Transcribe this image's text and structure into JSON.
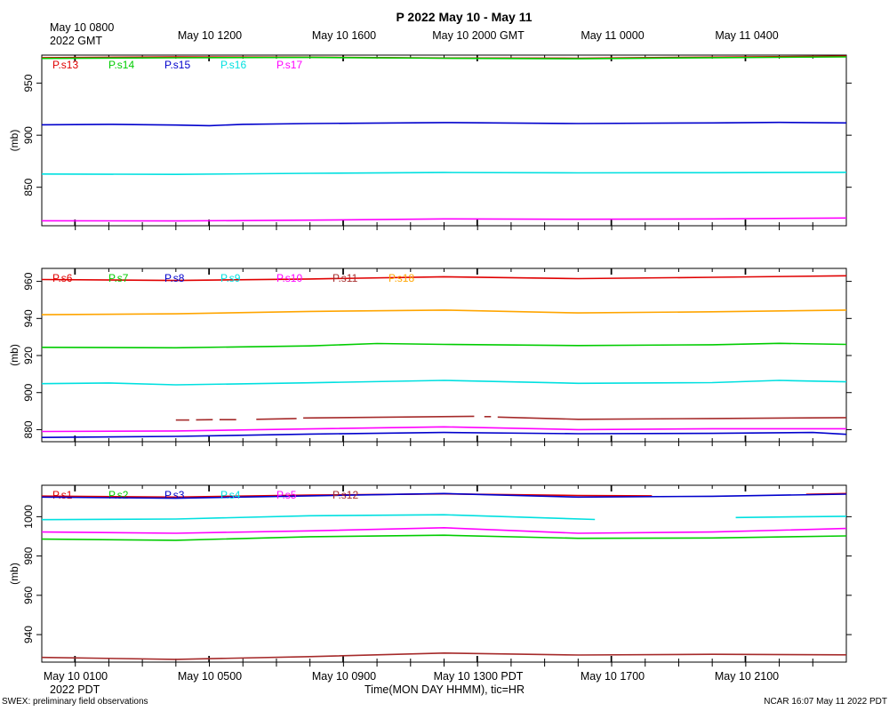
{
  "title": "P 2022 May 10 - May 11",
  "top_axis": {
    "first_label_line1": "May 10 0800",
    "first_label_line2": "2022 GMT",
    "labels": [
      "May 10 1200",
      "May 10 1600",
      "May 10 2000 GMT",
      "May 11 0000",
      "May 11 0400"
    ]
  },
  "bottom_axis": {
    "labels": [
      "May 10 0100",
      "May 10 0500",
      "May 10 0900",
      "May 10 1300 PDT",
      "May 10 1700",
      "May 10 2100"
    ],
    "year_label": "2022 PDT",
    "title": "Time(MON DAY HHMM), tic=HR"
  },
  "footer": {
    "left": "SWEX: preliminary field observations",
    "right": "NCAR 16:07 May 11 2022 PDT"
  },
  "chart_data": [
    {
      "type": "line",
      "ylabel": "(mb)",
      "ylim": [
        813,
        977
      ],
      "yticks": [
        850,
        900,
        950
      ],
      "xlim": [
        0,
        24
      ],
      "series": [
        {
          "name": "P.s13",
          "color": "#e00000",
          "points": [
            [
              0,
              974.5
            ],
            [
              4,
              975.2
            ],
            [
              8,
              975.0
            ],
            [
              12,
              974.2
            ],
            [
              16,
              974.0
            ],
            [
              20,
              975.0
            ],
            [
              24,
              976.0
            ]
          ]
        },
        {
          "name": "P.s14",
          "color": "#00cc00",
          "points": [
            [
              0,
              973.8
            ],
            [
              4,
              974.4
            ],
            [
              8,
              974.8
            ],
            [
              12,
              974.0
            ],
            [
              16,
              973.5
            ],
            [
              20,
              974.5
            ],
            [
              24,
              975.3
            ]
          ]
        },
        {
          "name": "P.s15",
          "color": "#0000cc",
          "points": [
            [
              0,
              910
            ],
            [
              2,
              910.5
            ],
            [
              4,
              909.8
            ],
            [
              5,
              909.2
            ],
            [
              6,
              910.5
            ],
            [
              8,
              911.2
            ],
            [
              12,
              912.2
            ],
            [
              16,
              911.2
            ],
            [
              20,
              911.8
            ],
            [
              22,
              912.3
            ],
            [
              24,
              911.8
            ]
          ]
        },
        {
          "name": "P.s16",
          "color": "#00e0e0",
          "points": [
            [
              0,
              862.7
            ],
            [
              4,
              862.4
            ],
            [
              8,
              863.4
            ],
            [
              12,
              864.2
            ],
            [
              16,
              863.8
            ],
            [
              20,
              864.0
            ],
            [
              24,
              864.3
            ]
          ]
        },
        {
          "name": "P.s17",
          "color": "#ff00ff",
          "points": [
            [
              0,
              817.8
            ],
            [
              4,
              817.6
            ],
            [
              8,
              818.4
            ],
            [
              12,
              819.6
            ],
            [
              16,
              819.2
            ],
            [
              20,
              819.6
            ],
            [
              24,
              820.4
            ]
          ]
        }
      ]
    },
    {
      "type": "line",
      "ylabel": "(mb)",
      "ylim": [
        873.5,
        967
      ],
      "yticks": [
        880,
        900,
        920,
        940,
        960
      ],
      "xlim": [
        0,
        24
      ],
      "series": [
        {
          "name": "P.s6",
          "color": "#e00000",
          "points": [
            [
              0,
              961.0
            ],
            [
              4,
              960.5
            ],
            [
              8,
              961.3
            ],
            [
              12,
              962.5
            ],
            [
              16,
              961.5
            ],
            [
              20,
              962.2
            ],
            [
              24,
              963.0
            ]
          ]
        },
        {
          "name": "P.s7",
          "color": "#00cc00",
          "points": [
            [
              0,
              924.4
            ],
            [
              4,
              924.2
            ],
            [
              8,
              925.2
            ],
            [
              10,
              926.5
            ],
            [
              12,
              926.0
            ],
            [
              16,
              925.4
            ],
            [
              20,
              925.8
            ],
            [
              22,
              926.6
            ],
            [
              24,
              926.0
            ]
          ]
        },
        {
          "name": "P.s8",
          "color": "#0000cc",
          "points": [
            [
              0,
              875.8
            ],
            [
              4,
              876.4
            ],
            [
              8,
              877.6
            ],
            [
              12,
              878.5
            ],
            [
              16,
              877.8
            ],
            [
              20,
              878.0
            ],
            [
              23,
              878.5
            ],
            [
              24,
              877.5
            ]
          ]
        },
        {
          "name": "P.s9",
          "color": "#00e0e0",
          "points": [
            [
              0,
              904.8
            ],
            [
              2,
              905.2
            ],
            [
              4,
              904.2
            ],
            [
              8,
              905.3
            ],
            [
              12,
              906.6
            ],
            [
              16,
              905.0
            ],
            [
              20,
              905.4
            ],
            [
              22,
              906.6
            ],
            [
              24,
              905.8
            ]
          ]
        },
        {
          "name": "P.s10",
          "color": "#ff00ff",
          "points": [
            [
              0,
              879.0
            ],
            [
              4,
              879.3
            ],
            [
              8,
              880.4
            ],
            [
              12,
              881.5
            ],
            [
              16,
              880.0
            ],
            [
              20,
              880.5
            ],
            [
              24,
              880.5
            ]
          ]
        },
        {
          "name": "P.s11",
          "color": "#a52a2a",
          "segments": [
            [
              [
                4.0,
                885.2
              ],
              [
                4.4,
                885.2
              ]
            ],
            [
              [
                4.6,
                885.3
              ],
              [
                5.1,
                885.4
              ]
            ],
            [
              [
                5.3,
                885.4
              ],
              [
                5.8,
                885.4
              ]
            ],
            [
              [
                6.4,
                885.6
              ],
              [
                7.6,
                886.0
              ]
            ],
            [
              [
                7.8,
                886.3
              ],
              [
                12.9,
                887.2
              ]
            ],
            [
              [
                13.2,
                887.0
              ],
              [
                13.4,
                887.0
              ]
            ],
            [
              [
                13.6,
                886.8
              ],
              [
                16,
                885.6
              ],
              [
                20,
                886.0
              ],
              [
                24,
                886.5
              ]
            ]
          ]
        },
        {
          "name": "P.s18",
          "color": "#ffa500",
          "points": [
            [
              0,
              942.0
            ],
            [
              4,
              942.5
            ],
            [
              8,
              943.8
            ],
            [
              12,
              944.5
            ],
            [
              16,
              943.0
            ],
            [
              20,
              943.6
            ],
            [
              24,
              944.5
            ]
          ]
        }
      ]
    },
    {
      "type": "line",
      "ylabel": "(mb)",
      "ylim": [
        926,
        1016
      ],
      "yticks": [
        940,
        960,
        980,
        1000
      ],
      "xlim": [
        0,
        24
      ],
      "series": [
        {
          "name": "P.s1",
          "color": "#e00000",
          "segments": [
            [
              [
                0,
                1010.5
              ],
              [
                4,
                1010.0
              ],
              [
                8,
                1011.0
              ],
              [
                12,
                1011.6
              ],
              [
                16,
                1010.8
              ],
              [
                18.2,
                1010.6
              ]
            ],
            [
              [
                22.8,
                1011.4
              ],
              [
                24,
                1011.8
              ]
            ]
          ]
        },
        {
          "name": "P.s2",
          "color": "#00cc00",
          "points": [
            [
              0,
              988.6
            ],
            [
              4,
              988.0
            ],
            [
              8,
              989.8
            ],
            [
              12,
              990.6
            ],
            [
              16,
              989.0
            ],
            [
              20,
              989.2
            ],
            [
              24,
              990.2
            ]
          ]
        },
        {
          "name": "P.s3",
          "color": "#0000cc",
          "points": [
            [
              0,
              1010.0
            ],
            [
              4,
              1009.4
            ],
            [
              8,
              1010.6
            ],
            [
              12,
              1011.8
            ],
            [
              16,
              1010.0
            ],
            [
              20,
              1010.4
            ],
            [
              24,
              1011.5
            ]
          ]
        },
        {
          "name": "P.s4",
          "color": "#00e0e0",
          "segments": [
            [
              [
                0,
                998.5
              ],
              [
                4,
                998.8
              ],
              [
                8,
                1000.5
              ],
              [
                12,
                1001.0
              ],
              [
                16.5,
                998.6
              ]
            ],
            [
              [
                20.7,
                999.6
              ],
              [
                24,
                1000.2
              ]
            ]
          ]
        },
        {
          "name": "P.s5",
          "color": "#ff00ff",
          "points": [
            [
              0,
              992.2
            ],
            [
              4,
              991.6
            ],
            [
              8,
              992.8
            ],
            [
              12,
              994.4
            ],
            [
              16,
              991.6
            ],
            [
              20,
              992.2
            ],
            [
              24,
              994.0
            ]
          ]
        },
        {
          "name": "P.s12",
          "color": "#a52a2a",
          "points": [
            [
              0,
              928.4
            ],
            [
              4,
              927.4
            ],
            [
              8,
              928.8
            ],
            [
              12,
              930.6
            ],
            [
              16,
              929.6
            ],
            [
              20,
              930.0
            ],
            [
              24,
              929.7
            ]
          ]
        }
      ]
    }
  ]
}
